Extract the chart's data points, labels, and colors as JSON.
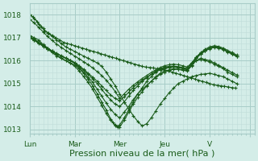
{
  "xlabel": "Pression niveau de la mer( hPa )",
  "bg_color": "#d4ede8",
  "grid_major_color": "#a8ccc8",
  "grid_minor_color": "#c0dcd8",
  "line_color": "#1a5c1a",
  "marker": "+",
  "marker_size": 3,
  "line_width": 0.8,
  "xlim": [
    0,
    5.0
  ],
  "ylim": [
    1012.8,
    1018.5
  ],
  "yticks": [
    1013,
    1014,
    1015,
    1016,
    1017,
    1018
  ],
  "xtick_positions": [
    0.0,
    1.0,
    2.0,
    3.0,
    4.0,
    4.9
  ],
  "xtick_labels": [
    "Lun",
    "Mar",
    "Mer",
    "Jeu",
    "V",
    ""
  ],
  "tick_fontsize": 6.5,
  "xlabel_fontsize": 8,
  "series": [
    {
      "x": [
        0.0,
        0.08,
        0.17,
        0.25,
        0.33,
        0.42,
        0.5,
        0.58,
        0.67,
        0.75,
        0.83,
        0.92,
        1.0,
        1.08,
        1.17,
        1.25,
        1.33,
        1.42,
        1.5,
        1.58,
        1.67,
        1.75,
        1.83,
        1.92,
        2.0,
        2.08,
        2.17,
        2.25,
        2.33,
        2.42,
        2.5,
        2.58,
        2.67,
        2.75,
        2.83,
        2.92,
        3.0,
        3.08,
        3.17,
        3.25,
        3.33,
        3.42,
        3.5,
        3.58,
        3.67,
        3.75,
        3.83,
        3.92,
        4.0,
        4.08,
        4.17,
        4.25,
        4.33,
        4.42,
        4.5,
        4.58
      ],
      "y": [
        1018.0,
        1017.9,
        1017.7,
        1017.5,
        1017.3,
        1017.2,
        1017.1,
        1017.0,
        1016.9,
        1016.8,
        1016.75,
        1016.7,
        1016.65,
        1016.6,
        1016.55,
        1016.5,
        1016.45,
        1016.4,
        1016.35,
        1016.3,
        1016.25,
        1016.2,
        1016.15,
        1016.1,
        1016.05,
        1016.0,
        1015.95,
        1015.9,
        1015.85,
        1015.8,
        1015.75,
        1015.72,
        1015.7,
        1015.68,
        1015.65,
        1015.62,
        1015.6,
        1015.55,
        1015.5,
        1015.45,
        1015.4,
        1015.35,
        1015.3,
        1015.25,
        1015.2,
        1015.15,
        1015.1,
        1015.05,
        1015.0,
        1014.95,
        1014.92,
        1014.9,
        1014.88,
        1014.85,
        1014.82,
        1014.8
      ]
    },
    {
      "x": [
        0.0,
        0.1,
        0.2,
        0.3,
        0.4,
        0.5,
        0.6,
        0.7,
        0.8,
        0.9,
        1.0,
        1.1,
        1.2,
        1.3,
        1.4,
        1.5,
        1.6,
        1.7,
        1.8,
        1.9,
        2.0,
        2.1,
        2.2,
        2.3,
        2.4,
        2.5,
        2.6,
        2.7,
        2.8,
        2.9,
        3.0,
        3.1,
        3.2,
        3.3,
        3.4,
        3.5,
        3.6,
        3.7,
        3.8,
        3.9,
        4.0,
        4.1,
        4.2,
        4.3,
        4.4,
        4.5,
        4.6
      ],
      "y": [
        1018.0,
        1017.85,
        1017.6,
        1017.4,
        1017.2,
        1017.05,
        1016.9,
        1016.75,
        1016.6,
        1016.5,
        1016.4,
        1016.3,
        1016.2,
        1016.1,
        1016.0,
        1015.9,
        1015.75,
        1015.5,
        1015.2,
        1014.9,
        1014.55,
        1014.2,
        1013.9,
        1013.6,
        1013.35,
        1013.15,
        1013.25,
        1013.5,
        1013.8,
        1014.1,
        1014.35,
        1014.6,
        1014.8,
        1015.0,
        1015.1,
        1015.2,
        1015.3,
        1015.35,
        1015.4,
        1015.42,
        1015.45,
        1015.4,
        1015.35,
        1015.3,
        1015.2,
        1015.1,
        1015.0
      ]
    },
    {
      "x": [
        0.0,
        0.1,
        0.2,
        0.3,
        0.4,
        0.5,
        0.6,
        0.7,
        0.8,
        0.9,
        1.0,
        1.1,
        1.2,
        1.3,
        1.4,
        1.5,
        1.6,
        1.7,
        1.8,
        1.85,
        1.9,
        1.95,
        2.0,
        2.1,
        2.2,
        2.3,
        2.4,
        2.5,
        2.6,
        2.7,
        2.8,
        2.9,
        3.0,
        3.1,
        3.2,
        3.3,
        3.4,
        3.5,
        3.6,
        3.7,
        3.8,
        3.9,
        4.0,
        4.1,
        4.2,
        4.3,
        4.4,
        4.5,
        4.6
      ],
      "y": [
        1017.1,
        1017.0,
        1016.9,
        1016.7,
        1016.55,
        1016.4,
        1016.25,
        1016.1,
        1016.0,
        1015.9,
        1015.8,
        1015.65,
        1015.45,
        1015.2,
        1014.9,
        1014.55,
        1014.2,
        1013.85,
        1013.45,
        1013.3,
        1013.15,
        1013.1,
        1013.2,
        1013.5,
        1013.85,
        1014.2,
        1014.55,
        1014.8,
        1015.1,
        1015.3,
        1015.5,
        1015.6,
        1015.65,
        1015.7,
        1015.72,
        1015.7,
        1015.68,
        1015.65,
        1015.9,
        1016.0,
        1016.05,
        1016.0,
        1015.95,
        1015.85,
        1015.75,
        1015.65,
        1015.5,
        1015.4,
        1015.3
      ]
    },
    {
      "x": [
        0.0,
        0.1,
        0.2,
        0.3,
        0.4,
        0.5,
        0.6,
        0.7,
        0.8,
        0.9,
        1.0,
        1.1,
        1.2,
        1.3,
        1.4,
        1.5,
        1.6,
        1.7,
        1.8,
        1.9,
        2.0,
        2.1,
        2.2,
        2.3,
        2.4,
        2.5,
        2.6,
        2.7,
        2.8,
        2.9,
        3.0,
        3.1,
        3.2,
        3.3,
        3.4,
        3.5,
        3.6,
        3.7,
        3.8,
        3.9,
        4.0,
        4.1,
        4.2,
        4.3,
        4.4,
        4.5,
        4.6
      ],
      "y": [
        1017.05,
        1016.95,
        1016.8,
        1016.65,
        1016.5,
        1016.35,
        1016.2,
        1016.1,
        1016.0,
        1015.9,
        1015.75,
        1015.55,
        1015.3,
        1015.05,
        1014.75,
        1014.4,
        1014.05,
        1013.7,
        1013.4,
        1013.2,
        1013.1,
        1013.4,
        1013.75,
        1014.1,
        1014.4,
        1014.65,
        1014.9,
        1015.1,
        1015.3,
        1015.45,
        1015.55,
        1015.6,
        1015.65,
        1015.62,
        1015.58,
        1015.55,
        1015.78,
        1016.0,
        1016.1,
        1016.05,
        1016.0,
        1015.9,
        1015.8,
        1015.7,
        1015.58,
        1015.48,
        1015.38
      ]
    },
    {
      "x": [
        0.0,
        0.1,
        0.2,
        0.3,
        0.4,
        0.5,
        0.6,
        0.7,
        0.8,
        0.9,
        1.0,
        1.1,
        1.2,
        1.3,
        1.4,
        1.5,
        1.6,
        1.7,
        1.8,
        1.9,
        2.0,
        2.1,
        2.2,
        2.3,
        2.4,
        2.5,
        2.6,
        2.7,
        2.8,
        2.9,
        3.0,
        3.1,
        3.2,
        3.3,
        3.4,
        3.5,
        3.6,
        3.7,
        3.8,
        3.9,
        4.0,
        4.1,
        4.2,
        4.3,
        4.4,
        4.5,
        4.6
      ],
      "y": [
        1017.0,
        1016.92,
        1016.8,
        1016.68,
        1016.55,
        1016.42,
        1016.3,
        1016.2,
        1016.1,
        1016.0,
        1015.88,
        1015.7,
        1015.5,
        1015.28,
        1015.05,
        1014.75,
        1014.45,
        1014.15,
        1013.88,
        1013.65,
        1013.5,
        1013.75,
        1014.0,
        1014.3,
        1014.55,
        1014.75,
        1014.92,
        1015.1,
        1015.25,
        1015.4,
        1015.5,
        1015.58,
        1015.62,
        1015.62,
        1015.6,
        1015.58,
        1015.8,
        1016.1,
        1016.3,
        1016.45,
        1016.55,
        1016.6,
        1016.58,
        1016.5,
        1016.4,
        1016.3,
        1016.2
      ]
    },
    {
      "x": [
        0.0,
        0.1,
        0.2,
        0.3,
        0.4,
        0.5,
        0.6,
        0.7,
        0.8,
        0.9,
        1.0,
        1.1,
        1.2,
        1.3,
        1.4,
        1.5,
        1.6,
        1.7,
        1.8,
        1.9,
        2.0,
        2.1,
        2.2,
        2.3,
        2.4,
        2.5,
        2.6,
        2.7,
        2.8,
        2.9,
        3.0,
        3.1,
        3.2,
        3.3,
        3.4,
        3.5,
        3.6,
        3.7,
        3.8,
        3.9,
        4.0,
        4.1,
        4.2,
        4.3,
        4.4,
        4.5,
        4.6
      ],
      "y": [
        1017.0,
        1016.88,
        1016.75,
        1016.62,
        1016.5,
        1016.4,
        1016.3,
        1016.2,
        1016.1,
        1016.0,
        1015.9,
        1015.75,
        1015.58,
        1015.4,
        1015.2,
        1015.0,
        1014.75,
        1014.5,
        1014.28,
        1014.1,
        1014.0,
        1014.2,
        1014.45,
        1014.7,
        1014.9,
        1015.1,
        1015.25,
        1015.4,
        1015.55,
        1015.65,
        1015.72,
        1015.75,
        1015.76,
        1015.74,
        1015.7,
        1015.65,
        1015.88,
        1016.15,
        1016.35,
        1016.5,
        1016.6,
        1016.65,
        1016.62,
        1016.55,
        1016.45,
        1016.35,
        1016.25
      ]
    },
    {
      "x": [
        0.0,
        0.1,
        0.2,
        0.3,
        0.4,
        0.5,
        0.6,
        0.7,
        0.8,
        0.9,
        1.0,
        1.1,
        1.2,
        1.3,
        1.4,
        1.5,
        1.6,
        1.7,
        1.8,
        1.9,
        2.0,
        2.1,
        2.2,
        2.3,
        2.4,
        2.5,
        2.6,
        2.7,
        2.8,
        2.9,
        3.0,
        3.1,
        3.2,
        3.3,
        3.4,
        3.5,
        3.6,
        3.7,
        3.8,
        3.9,
        4.0,
        4.1,
        4.2,
        4.3,
        4.4,
        4.5,
        4.6
      ],
      "y": [
        1017.0,
        1016.9,
        1016.78,
        1016.65,
        1016.52,
        1016.42,
        1016.32,
        1016.22,
        1016.12,
        1016.02,
        1015.92,
        1015.78,
        1015.62,
        1015.45,
        1015.28,
        1015.1,
        1014.9,
        1014.7,
        1014.5,
        1014.35,
        1014.25,
        1014.42,
        1014.62,
        1014.82,
        1015.0,
        1015.15,
        1015.28,
        1015.4,
        1015.52,
        1015.62,
        1015.68,
        1015.72,
        1015.72,
        1015.7,
        1015.65,
        1015.6,
        1015.8,
        1016.1,
        1016.28,
        1016.42,
        1016.52,
        1016.58,
        1016.55,
        1016.48,
        1016.38,
        1016.28,
        1016.18
      ]
    },
    {
      "x": [
        0.0,
        0.1,
        0.2,
        0.3,
        0.4,
        0.5,
        0.6,
        0.7,
        0.8,
        0.9,
        1.0,
        1.1,
        1.2,
        1.3,
        1.4,
        1.5,
        1.6,
        1.7,
        1.8,
        1.9,
        2.0,
        2.1,
        2.2,
        2.3,
        2.4,
        2.5,
        2.6,
        2.7,
        2.8,
        2.9,
        3.0,
        3.1,
        3.2,
        3.3,
        3.4,
        3.5,
        3.6,
        3.7,
        3.8,
        3.9,
        4.0,
        4.1,
        4.2,
        4.3,
        4.4,
        4.5,
        4.6
      ],
      "y": [
        1017.8,
        1017.65,
        1017.45,
        1017.25,
        1017.05,
        1016.88,
        1016.72,
        1016.58,
        1016.45,
        1016.32,
        1016.2,
        1016.08,
        1015.95,
        1015.82,
        1015.68,
        1015.52,
        1015.35,
        1015.15,
        1014.92,
        1014.65,
        1014.35,
        1014.55,
        1014.75,
        1014.92,
        1015.08,
        1015.22,
        1015.35,
        1015.48,
        1015.6,
        1015.7,
        1015.78,
        1015.82,
        1015.85,
        1015.82,
        1015.78,
        1015.72,
        1015.9,
        1016.15,
        1016.32,
        1016.45,
        1016.55,
        1016.6,
        1016.58,
        1016.5,
        1016.4,
        1016.3,
        1016.2
      ]
    }
  ]
}
